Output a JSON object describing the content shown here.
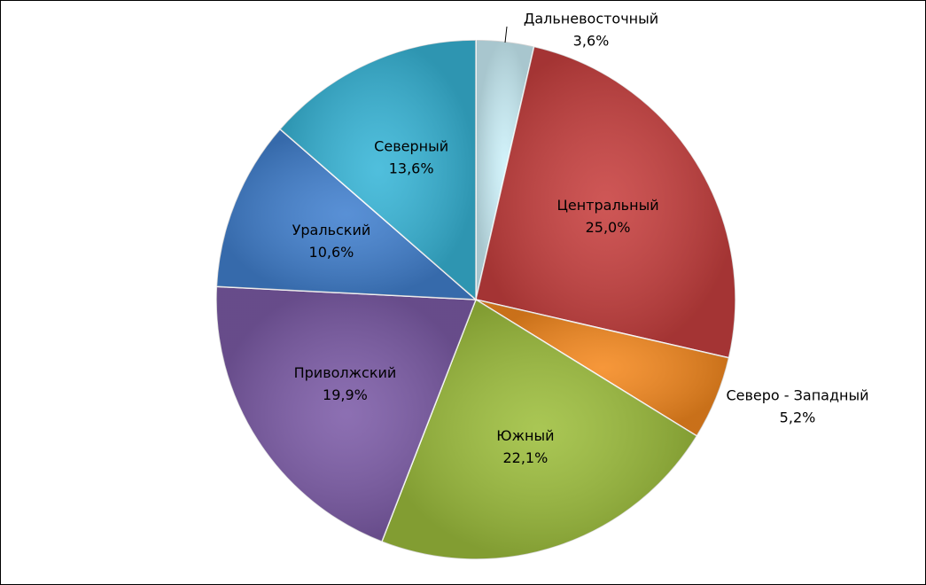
{
  "chart_data": {
    "type": "pie",
    "categories": [
      "Дальневосточный",
      "Центральный",
      "Северо - Западный",
      "Южный",
      "Приволжский",
      "Уральский",
      "Северный"
    ],
    "values": [
      3.6,
      25.0,
      5.2,
      22.1,
      19.9,
      10.6,
      13.6
    ],
    "value_labels": [
      "3,6%",
      "25,0%",
      "5,2%",
      "22,1%",
      "19,9%",
      "10,6%",
      "13,6%"
    ],
    "colors": [
      "#cdf2fb",
      "#c8403f",
      "#f5891f",
      "#9ebf3d",
      "#7d5ca8",
      "#4281d0",
      "#38b6d8"
    ]
  }
}
